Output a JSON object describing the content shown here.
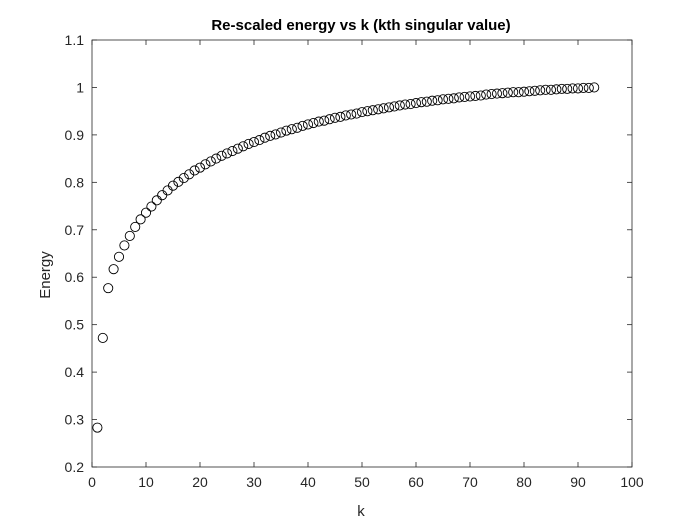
{
  "chart_data": {
    "type": "scatter",
    "title": "Re-scaled energy vs k (kth singular value)",
    "xlabel": "k",
    "ylabel": "Energy",
    "xlim": [
      0,
      100
    ],
    "ylim": [
      0.2,
      1.1
    ],
    "xticks": [
      0,
      10,
      20,
      30,
      40,
      50,
      60,
      70,
      80,
      90,
      100
    ],
    "yticks": [
      0.2,
      0.3,
      0.4,
      0.5,
      0.6,
      0.7,
      0.8,
      0.9,
      1.0,
      1.1
    ],
    "xtick_labels": [
      "0",
      "10",
      "20",
      "30",
      "40",
      "50",
      "60",
      "70",
      "80",
      "90",
      "100"
    ],
    "ytick_labels": [
      "0.2",
      "0.3",
      "0.4",
      "0.5",
      "0.6",
      "0.7",
      "0.8",
      "0.9",
      "1",
      "1.1"
    ],
    "grid": false,
    "marker": "open-circle",
    "marker_color": "#000000",
    "x": [
      1,
      2,
      3,
      4,
      5,
      6,
      7,
      8,
      9,
      10,
      11,
      12,
      13,
      14,
      15,
      16,
      17,
      18,
      19,
      20,
      21,
      22,
      23,
      24,
      25,
      26,
      27,
      28,
      29,
      30,
      31,
      32,
      33,
      34,
      35,
      36,
      37,
      38,
      39,
      40,
      41,
      42,
      43,
      44,
      45,
      46,
      47,
      48,
      49,
      50,
      51,
      52,
      53,
      54,
      55,
      56,
      57,
      58,
      59,
      60,
      61,
      62,
      63,
      64,
      65,
      66,
      67,
      68,
      69,
      70,
      71,
      72,
      73,
      74,
      75,
      76,
      77,
      78,
      79,
      80,
      81,
      82,
      83,
      84,
      85,
      86,
      87,
      88,
      89,
      90,
      91,
      92,
      93
    ],
    "y": [
      0.283,
      0.472,
      0.577,
      0.617,
      0.643,
      0.667,
      0.687,
      0.706,
      0.722,
      0.736,
      0.749,
      0.762,
      0.773,
      0.783,
      0.793,
      0.801,
      0.809,
      0.817,
      0.825,
      0.831,
      0.838,
      0.844,
      0.85,
      0.856,
      0.861,
      0.866,
      0.871,
      0.876,
      0.881,
      0.885,
      0.889,
      0.894,
      0.898,
      0.901,
      0.905,
      0.909,
      0.912,
      0.915,
      0.919,
      0.922,
      0.925,
      0.928,
      0.93,
      0.933,
      0.936,
      0.938,
      0.941,
      0.943,
      0.945,
      0.948,
      0.95,
      0.952,
      0.954,
      0.956,
      0.958,
      0.96,
      0.962,
      0.964,
      0.965,
      0.967,
      0.969,
      0.97,
      0.972,
      0.973,
      0.975,
      0.976,
      0.977,
      0.979,
      0.98,
      0.981,
      0.982,
      0.983,
      0.985,
      0.986,
      0.987,
      0.988,
      0.989,
      0.99,
      0.99,
      0.991,
      0.992,
      0.993,
      0.994,
      0.995,
      0.995,
      0.996,
      0.997,
      0.997,
      0.998,
      0.998,
      0.999,
      0.999,
      1.0
    ]
  }
}
